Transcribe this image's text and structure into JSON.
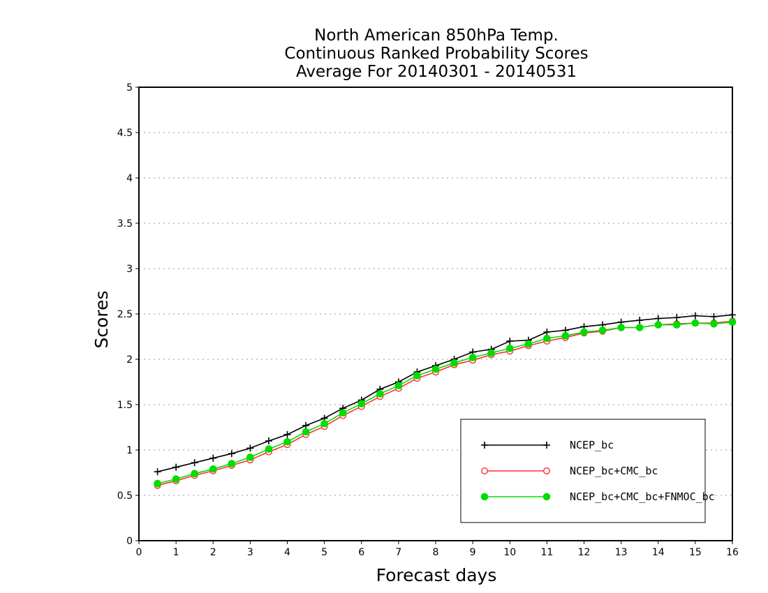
{
  "chart_data": {
    "type": "line",
    "title": [
      "North American 850hPa Temp.",
      "Continuous Ranked Probability Scores",
      "Average For 20140301 - 20140531"
    ],
    "xlabel": "Forecast days",
    "ylabel": "Scores",
    "xlim": [
      0,
      16
    ],
    "ylim": [
      0,
      5
    ],
    "xticks": [
      "0",
      "1",
      "2",
      "3",
      "4",
      "5",
      "6",
      "7",
      "8",
      "9",
      "10",
      "11",
      "12",
      "13",
      "14",
      "15",
      "16"
    ],
    "yticks": [
      "0",
      "0.5",
      "1",
      "1.5",
      "2",
      "2.5",
      "3",
      "3.5",
      "4",
      "4.5",
      "5"
    ],
    "grid": "horizontal-dotted",
    "legend_position": "bottom-right",
    "x": [
      0.5,
      1,
      1.5,
      2,
      2.5,
      3,
      3.5,
      4,
      4.5,
      5,
      5.5,
      6,
      6.5,
      7,
      7.5,
      8,
      8.5,
      9,
      9.5,
      10,
      10.5,
      11,
      11.5,
      12,
      12.5,
      13,
      13.5,
      14,
      14.5,
      15,
      15.5,
      16
    ],
    "series": [
      {
        "name": "NCEP_bc",
        "color": "#000000",
        "marker": "plus",
        "values": [
          0.76,
          0.81,
          0.86,
          0.91,
          0.96,
          1.02,
          1.1,
          1.17,
          1.27,
          1.35,
          1.46,
          1.55,
          1.67,
          1.75,
          1.86,
          1.93,
          2.0,
          2.08,
          2.11,
          2.2,
          2.21,
          2.3,
          2.32,
          2.36,
          2.38,
          2.41,
          2.43,
          2.45,
          2.46,
          2.48,
          2.47,
          2.49
        ]
      },
      {
        "name": "NCEP_bc+CMC_bc",
        "color": "#ff3030",
        "marker": "open-circle",
        "values": [
          0.61,
          0.66,
          0.72,
          0.77,
          0.83,
          0.89,
          0.98,
          1.06,
          1.17,
          1.26,
          1.38,
          1.48,
          1.59,
          1.68,
          1.79,
          1.86,
          1.94,
          1.99,
          2.05,
          2.09,
          2.15,
          2.2,
          2.24,
          2.29,
          2.31,
          2.35,
          2.35,
          2.38,
          2.39,
          2.4,
          2.4,
          2.42
        ]
      },
      {
        "name": "NCEP_bc+CMC_bc+FNMOC_bc",
        "color": "#00dd00",
        "marker": "filled-circle",
        "values": [
          0.63,
          0.68,
          0.74,
          0.79,
          0.85,
          0.92,
          1.01,
          1.09,
          1.2,
          1.29,
          1.41,
          1.51,
          1.62,
          1.71,
          1.82,
          1.89,
          1.96,
          2.02,
          2.07,
          2.12,
          2.17,
          2.23,
          2.26,
          2.3,
          2.32,
          2.35,
          2.35,
          2.38,
          2.38,
          2.4,
          2.39,
          2.41
        ]
      }
    ]
  }
}
